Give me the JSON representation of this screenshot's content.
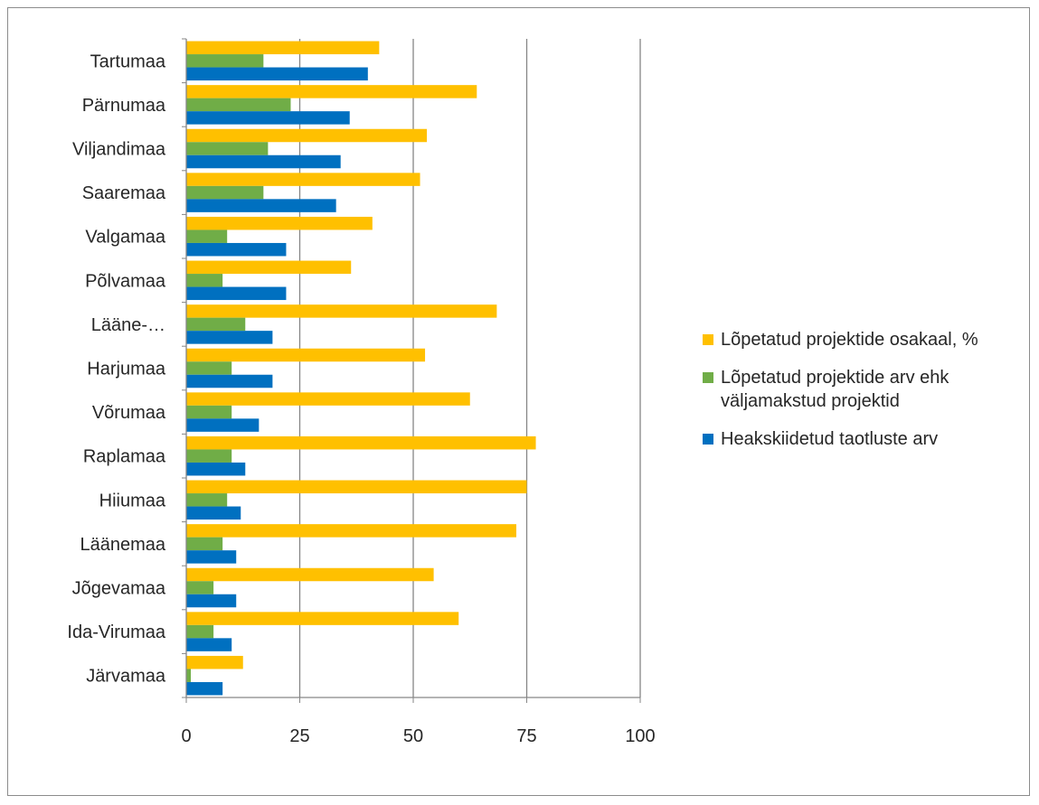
{
  "chart_data": {
    "type": "bar",
    "orientation": "horizontal",
    "categories": [
      "Tartumaa",
      "Pärnumaa",
      "Viljandimaa",
      "Saaremaa",
      "Valgamaa",
      "Põlvamaa",
      "Lääne-…",
      "Harjumaa",
      "Võrumaa",
      "Raplamaa",
      "Hiiumaa",
      "Läänemaa",
      "Jõgevamaa",
      "Ida-Virumaa",
      "Järvamaa"
    ],
    "series": [
      {
        "name": "Lõpetatud projektide osakaal, %",
        "color": "#FFC000",
        "values": [
          42.5,
          64,
          53,
          51.5,
          41,
          36.3,
          68.4,
          52.6,
          62.5,
          77,
          75,
          72.7,
          54.5,
          60,
          12.5
        ]
      },
      {
        "name": "Lõpetatud projektide arv ehk väljamakstud projektid",
        "color": "#70AD47",
        "values": [
          17,
          23,
          18,
          17,
          9,
          8,
          13,
          10,
          10,
          10,
          9,
          8,
          6,
          6,
          1
        ]
      },
      {
        "name": "Heakskiidetud taotluste arv",
        "color": "#0070C0",
        "values": [
          40,
          36,
          34,
          33,
          22,
          22,
          19,
          19,
          16,
          13,
          12,
          11,
          11,
          10,
          8
        ]
      }
    ],
    "xlim": [
      0,
      100
    ],
    "xticks": [
      0,
      25,
      50,
      75,
      100
    ],
    "grid": true,
    "legend_position": "right"
  }
}
